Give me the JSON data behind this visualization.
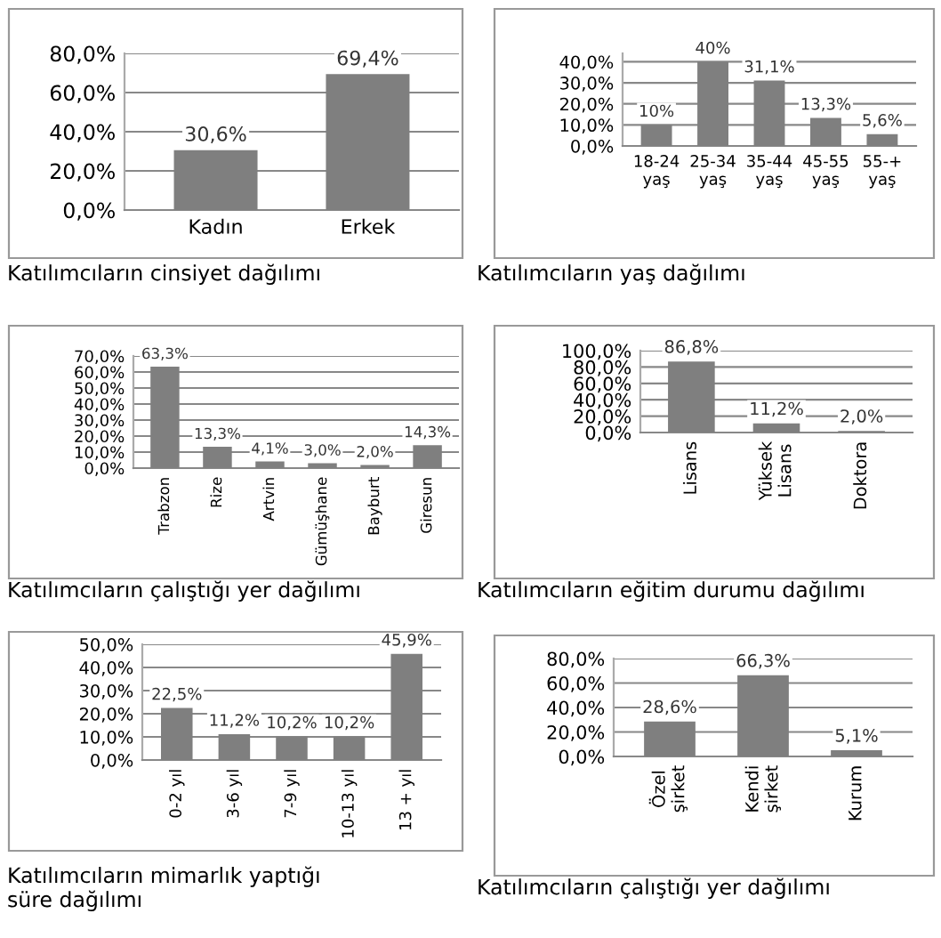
{
  "chart_data": [
    {
      "type": "bar",
      "title": "Katılımcıların cinsiyet dağılımı",
      "categories": [
        "Kadın",
        "Erkek"
      ],
      "values": [
        30.6,
        69.4
      ],
      "value_labels": [
        "30,6%",
        "69,4%"
      ],
      "color": "#7f7f7f",
      "ylim": [
        0,
        80
      ],
      "yticks": [
        {
          "value": 0,
          "label": "0,0%"
        },
        {
          "value": 20,
          "label": "20,0%"
        },
        {
          "value": 40,
          "label": "40,0%"
        },
        {
          "value": 60,
          "label": "60,0%"
        },
        {
          "value": 80,
          "label": "80,0%"
        }
      ],
      "grid": "y"
    },
    {
      "type": "bar",
      "title": "Katılımcıların yaş dağılımı",
      "categories": [
        "18-24\nyaş",
        "25-34\nyaş",
        "35-44\nyaş",
        "45-55\nyaş",
        "55-+\nyaş"
      ],
      "values": [
        10,
        40,
        31.1,
        13.3,
        5.6
      ],
      "value_labels": [
        "10%",
        "40%",
        "31,1%",
        "13,3%",
        "5,6%"
      ],
      "color": "#7f7f7f",
      "ylim": [
        0,
        44
      ],
      "yticks": [
        {
          "value": 0,
          "label": "0,0%"
        },
        {
          "value": 10,
          "label": "10,0%"
        },
        {
          "value": 20,
          "label": "20,0%"
        },
        {
          "value": 30,
          "label": "30,0%"
        },
        {
          "value": 40,
          "label": "40,0%"
        }
      ],
      "grid": "y"
    },
    {
      "type": "bar",
      "title": "Katılımcıların çalıştığı yer dağılımı",
      "categories": [
        "Trabzon",
        "Rize",
        "Artvin",
        "Gümüşhane",
        "Bayburt",
        "Giresun"
      ],
      "values": [
        63.3,
        13.3,
        4.1,
        3.0,
        2.0,
        14.3
      ],
      "value_labels": [
        "63,3%",
        "13,3%",
        "4,1%",
        "3,0%",
        "2,0%",
        "14,3%"
      ],
      "color": "#7f7f7f",
      "ylim": [
        0,
        70
      ],
      "yticks": [
        {
          "value": 0,
          "label": "0,0%"
        },
        {
          "value": 10,
          "label": "10,0%"
        },
        {
          "value": 20,
          "label": "20,0%"
        },
        {
          "value": 30,
          "label": "30,0%"
        },
        {
          "value": 40,
          "label": "40,0%"
        },
        {
          "value": 50,
          "label": "50,0%"
        },
        {
          "value": 60,
          "label": "60,0%"
        },
        {
          "value": 70,
          "label": "70,0%"
        }
      ],
      "grid": "y"
    },
    {
      "type": "bar",
      "title": "Katılımcıların eğitim durumu dağılımı",
      "categories": [
        "Lisans",
        "Yüksek\nLisans",
        "Doktora"
      ],
      "values": [
        86.8,
        11.2,
        2.0
      ],
      "value_labels": [
        "86,8%",
        "11,2%",
        "2,0%"
      ],
      "color": "#7f7f7f",
      "ylim": [
        0,
        100
      ],
      "yticks": [
        {
          "value": 0,
          "label": "0,0%"
        },
        {
          "value": 20,
          "label": "20,0%"
        },
        {
          "value": 40,
          "label": "40,0%"
        },
        {
          "value": 60,
          "label": "60,0%"
        },
        {
          "value": 80,
          "label": "80,0%"
        },
        {
          "value": 100,
          "label": "100,0%"
        }
      ],
      "grid": "y"
    },
    {
      "type": "bar",
      "title": "Katılımcıların mimarlık yaptığı\nsüre dağılımı",
      "categories": [
        "0-2 yıl",
        "3-6 yıl",
        "7-9 yıl",
        "10-13 yıl",
        "13 + yıl"
      ],
      "values": [
        22.5,
        11.2,
        10.2,
        10.2,
        45.9
      ],
      "value_labels": [
        "22,5%",
        "11,2%",
        "10,2%",
        "10,2%",
        "45,9%"
      ],
      "color": "#7f7f7f",
      "ylim": [
        0,
        50
      ],
      "yticks": [
        {
          "value": 0,
          "label": "0,0%"
        },
        {
          "value": 10,
          "label": "10,0%"
        },
        {
          "value": 20,
          "label": "20,0%"
        },
        {
          "value": 30,
          "label": "30,0%"
        },
        {
          "value": 40,
          "label": "40,0%"
        },
        {
          "value": 50,
          "label": "50,0%"
        }
      ],
      "grid": "y"
    },
    {
      "type": "bar",
      "title": "Katılımcıların çalıştığı yer dağılımı",
      "categories": [
        "Özel\nşirket",
        "Kendi\nşirket",
        "Kurum"
      ],
      "values": [
        28.6,
        66.3,
        5.1
      ],
      "value_labels": [
        "28,6%",
        "66,3%",
        "5,1%"
      ],
      "color": "#7f7f7f",
      "ylim": [
        0,
        80
      ],
      "yticks": [
        {
          "value": 0,
          "label": "0,0%"
        },
        {
          "value": 20,
          "label": "20,0%"
        },
        {
          "value": 40,
          "label": "40,0%"
        },
        {
          "value": 60,
          "label": "60,0%"
        },
        {
          "value": 80,
          "label": "80,0%"
        }
      ],
      "grid": "y"
    }
  ]
}
